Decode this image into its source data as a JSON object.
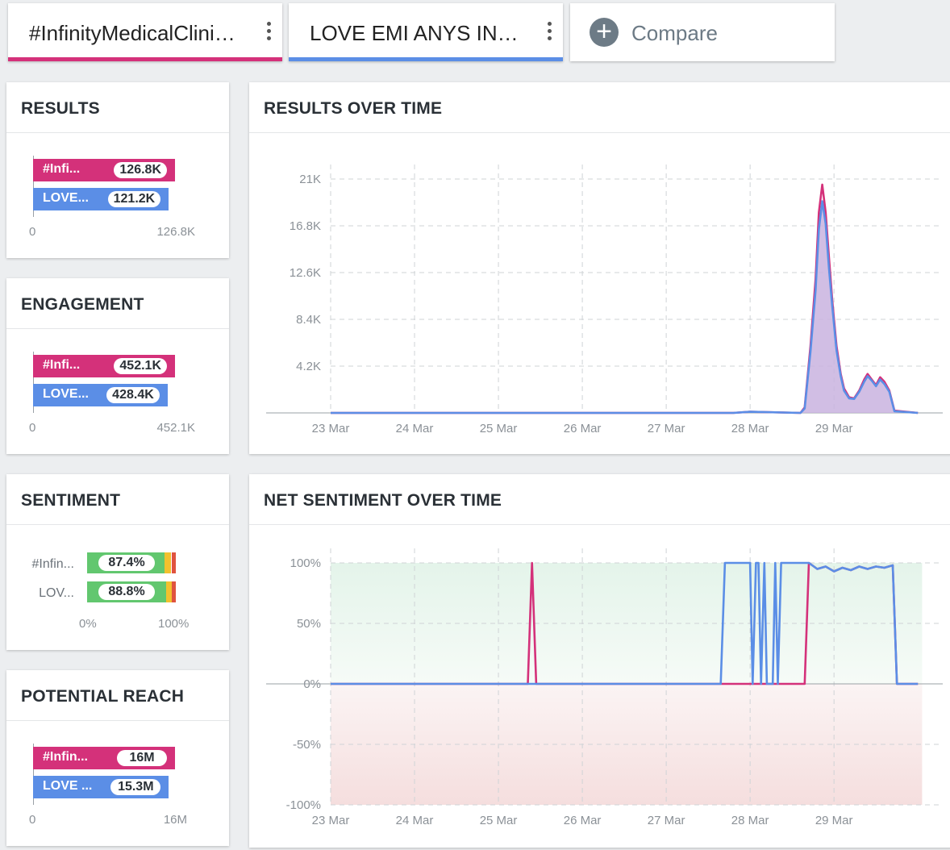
{
  "tabs": [
    {
      "label": "#InfinityMedicalClini…",
      "color": "#d4317a"
    },
    {
      "label": "LOVE EMI ANYS INF…",
      "color": "#5b8ee6"
    }
  ],
  "compare": {
    "label": "Compare",
    "icon": "plus-circle-icon"
  },
  "colors": {
    "pink": "#d4317a",
    "blue": "#5b8ee6",
    "positive": "#62c76f",
    "neutral": "#f2c12e",
    "negative": "#e0533f"
  },
  "results": {
    "title": "RESULTS",
    "bars": [
      {
        "name": "#Infi...",
        "value_label": "126.8K",
        "value": 126.8
      },
      {
        "name": "LOVE...",
        "value_label": "121.2K",
        "value": 121.2
      }
    ],
    "max": 126.8,
    "axis": {
      "min": "0",
      "max": "126.8K"
    }
  },
  "engagement": {
    "title": "ENGAGEMENT",
    "bars": [
      {
        "name": "#Infi...",
        "value_label": "452.1K",
        "value": 452.1
      },
      {
        "name": "LOVE...",
        "value_label": "428.4K",
        "value": 428.4
      }
    ],
    "max": 452.1,
    "axis": {
      "min": "0",
      "max": "452.1K"
    }
  },
  "sentiment": {
    "title": "SENTIMENT",
    "rows": [
      {
        "name": "#Infin...",
        "positive_label": "87.4%",
        "positive": 87.4,
        "neutral": 7.6,
        "negative": 5.0
      },
      {
        "name": "LOV...",
        "positive_label": "88.8%",
        "positive": 88.8,
        "neutral": 6.7,
        "negative": 4.5
      }
    ],
    "axis": {
      "min": "0%",
      "max": "100%"
    }
  },
  "potential_reach": {
    "title": "POTENTIAL REACH",
    "bars": [
      {
        "name": "#Infin...",
        "value_label": "16M",
        "value": 16
      },
      {
        "name": "LOVE ...",
        "value_label": "15.3M",
        "value": 15.3
      }
    ],
    "max": 16,
    "axis": {
      "min": "0",
      "max": "16M"
    }
  },
  "chart_data": [
    {
      "type": "area",
      "title": "RESULTS OVER TIME",
      "xlabel": "",
      "ylabel": "",
      "x_ticks": [
        "23 Mar",
        "24 Mar",
        "25 Mar",
        "26 Mar",
        "27 Mar",
        "28 Mar",
        "29 Mar"
      ],
      "y_ticks": [
        "4.2K",
        "8.4K",
        "12.6K",
        "16.8K",
        "21K"
      ],
      "x_range": [
        0,
        7.2
      ],
      "ylim": [
        0,
        21000
      ],
      "grid": true,
      "series": [
        {
          "name": "#InfinityMedicalClinic",
          "color": "#d4317a",
          "points": [
            [
              0,
              0
            ],
            [
              4.8,
              0
            ],
            [
              5.0,
              100
            ],
            [
              5.6,
              0
            ],
            [
              5.65,
              500
            ],
            [
              5.72,
              6000
            ],
            [
              5.78,
              12000
            ],
            [
              5.82,
              18000
            ],
            [
              5.86,
              20500
            ],
            [
              5.9,
              18000
            ],
            [
              5.94,
              14000
            ],
            [
              5.98,
              10000
            ],
            [
              6.03,
              6000
            ],
            [
              6.08,
              3500
            ],
            [
              6.12,
              2200
            ],
            [
              6.18,
              1400
            ],
            [
              6.24,
              1300
            ],
            [
              6.3,
              2000
            ],
            [
              6.36,
              3000
            ],
            [
              6.4,
              3500
            ],
            [
              6.45,
              3000
            ],
            [
              6.5,
              2500
            ],
            [
              6.55,
              3200
            ],
            [
              6.6,
              2800
            ],
            [
              6.66,
              2000
            ],
            [
              6.72,
              200
            ],
            [
              7.0,
              0
            ]
          ]
        },
        {
          "name": "LOVE EMI ANYS INF",
          "color": "#5b8ee6",
          "points": [
            [
              0,
              0
            ],
            [
              4.8,
              0
            ],
            [
              5.0,
              100
            ],
            [
              5.6,
              0
            ],
            [
              5.65,
              400
            ],
            [
              5.72,
              5500
            ],
            [
              5.78,
              11000
            ],
            [
              5.82,
              16500
            ],
            [
              5.86,
              19000
            ],
            [
              5.9,
              17000
            ],
            [
              5.94,
              13000
            ],
            [
              5.98,
              9500
            ],
            [
              6.03,
              5600
            ],
            [
              6.08,
              3300
            ],
            [
              6.12,
              2000
            ],
            [
              6.18,
              1300
            ],
            [
              6.24,
              1250
            ],
            [
              6.3,
              1900
            ],
            [
              6.36,
              2800
            ],
            [
              6.4,
              3300
            ],
            [
              6.45,
              2900
            ],
            [
              6.5,
              2400
            ],
            [
              6.55,
              3000
            ],
            [
              6.6,
              2600
            ],
            [
              6.66,
              1900
            ],
            [
              6.72,
              150
            ],
            [
              7.0,
              0
            ]
          ]
        }
      ]
    },
    {
      "type": "line",
      "title": "NET SENTIMENT OVER TIME",
      "xlabel": "",
      "ylabel": "",
      "x_ticks": [
        "23 Mar",
        "24 Mar",
        "25 Mar",
        "26 Mar",
        "27 Mar",
        "28 Mar",
        "29 Mar"
      ],
      "y_ticks": [
        "-100%",
        "-50%",
        "0%",
        "50%",
        "100%"
      ],
      "x_range": [
        0,
        7.2
      ],
      "ylim": [
        -100,
        100
      ],
      "grid": true,
      "series": [
        {
          "name": "#InfinityMedicalClinic",
          "color": "#d4317a",
          "points": [
            [
              0,
              0
            ],
            [
              2.35,
              0
            ],
            [
              2.4,
              100
            ],
            [
              2.45,
              0
            ],
            [
              5.65,
              0
            ],
            [
              5.7,
              100
            ],
            [
              5.8,
              95
            ],
            [
              5.9,
              97
            ],
            [
              6.0,
              93
            ],
            [
              6.1,
              96
            ],
            [
              6.2,
              94
            ],
            [
              6.3,
              97
            ],
            [
              6.4,
              95
            ],
            [
              6.5,
              97
            ],
            [
              6.6,
              96
            ],
            [
              6.7,
              98
            ],
            [
              6.75,
              0
            ],
            [
              7.0,
              0
            ]
          ]
        },
        {
          "name": "LOVE EMI ANYS INF",
          "color": "#5b8ee6",
          "points": [
            [
              0,
              0
            ],
            [
              4.65,
              0
            ],
            [
              4.7,
              100
            ],
            [
              5.0,
              100
            ],
            [
              5.03,
              0
            ],
            [
              5.07,
              100
            ],
            [
              5.1,
              100
            ],
            [
              5.13,
              0
            ],
            [
              5.17,
              100
            ],
            [
              5.2,
              0
            ],
            [
              5.27,
              0
            ],
            [
              5.3,
              100
            ],
            [
              5.33,
              0
            ],
            [
              5.37,
              100
            ],
            [
              5.65,
              100
            ],
            [
              5.7,
              100
            ],
            [
              5.8,
              95
            ],
            [
              5.9,
              97
            ],
            [
              6.0,
              93
            ],
            [
              6.1,
              96
            ],
            [
              6.2,
              94
            ],
            [
              6.3,
              97
            ],
            [
              6.4,
              95
            ],
            [
              6.5,
              97
            ],
            [
              6.6,
              96
            ],
            [
              6.7,
              98
            ],
            [
              6.75,
              0
            ],
            [
              7.0,
              0
            ]
          ]
        }
      ]
    }
  ]
}
